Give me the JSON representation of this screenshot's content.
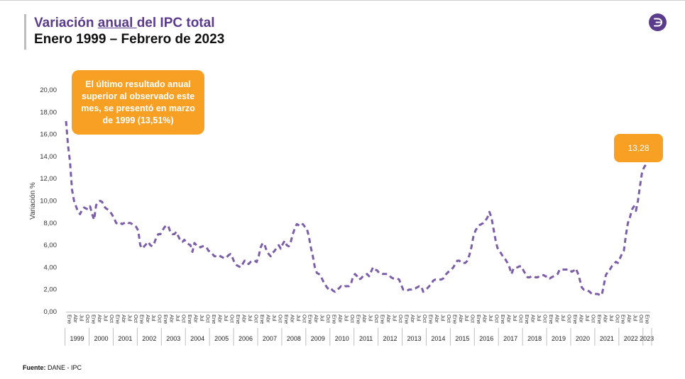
{
  "header": {
    "title_prefix": "Variación ",
    "title_underlined": "anual ",
    "title_suffix": "del IPC total",
    "subtitle": "Enero 1999 – Febrero de 2023"
  },
  "callout": {
    "text": "El último resultado anual superior al observado este mes, se presentó en marzo de 1999 (13,51%)"
  },
  "last_value_badge": {
    "text": "13,28"
  },
  "source": {
    "label": "Fuente:",
    "text": " DANE - IPC"
  },
  "colors": {
    "accent": "#5b3c8c",
    "callout": "#f7a023",
    "line": "#7b5ea7"
  },
  "logo": {
    "icon": "dane-logo-icon"
  },
  "chart_data": {
    "type": "line",
    "ylabel": "Variación %",
    "ylim": [
      0,
      20
    ],
    "ytick_labels": [
      "0,00",
      "2,00",
      "4,00",
      "6,00",
      "8,00",
      "10,00",
      "12,00",
      "14,00",
      "16,00",
      "18,00",
      "20,00"
    ],
    "month_labels": [
      "Ene",
      "Abr",
      "Jul",
      "Oct"
    ],
    "last_year_month_labels": [
      "Ene"
    ],
    "years": [
      "1999",
      "2000",
      "2001",
      "2002",
      "2003",
      "2004",
      "2005",
      "2006",
      "2007",
      "2008",
      "2009",
      "2010",
      "2011",
      "2012",
      "2013",
      "2014",
      "2015",
      "2016",
      "2017",
      "2018",
      "2019",
      "2020",
      "2021",
      "2022",
      "2023"
    ],
    "line_style": "dashed",
    "grid": false,
    "series": [
      {
        "values": [
          17.2,
          15.0,
          13.51,
          11.0,
          10.0,
          9.5,
          9.0,
          8.8,
          9.2,
          9.4,
          9.3,
          9.23,
          9.5,
          8.8,
          8.3,
          9.6,
          9.9,
          10.0,
          9.9,
          9.5,
          9.3,
          9.2,
          9.0,
          8.75,
          8.4,
          8.0,
          7.9,
          8.0,
          7.9,
          8.0,
          8.1,
          8.0,
          8.0,
          7.9,
          7.8,
          7.65,
          7.3,
          6.0,
          5.7,
          5.9,
          6.1,
          6.3,
          6.0,
          5.9,
          6.2,
          6.7,
          7.0,
          6.99,
          7.3,
          7.6,
          7.8,
          7.7,
          7.2,
          7.0,
          7.0,
          7.2,
          6.8,
          6.4,
          6.3,
          6.49,
          6.2,
          6.1,
          6.0,
          5.4,
          6.2,
          6.0,
          6.0,
          5.8,
          5.9,
          5.9,
          5.8,
          5.5,
          5.4,
          5.2,
          5.0,
          5.0,
          5.1,
          5.0,
          4.9,
          4.8,
          4.9,
          5.1,
          5.2,
          4.85,
          4.4,
          4.2,
          4.1,
          4.0,
          4.3,
          4.6,
          4.4,
          4.3,
          4.5,
          4.6,
          4.6,
          4.48,
          5.0,
          5.8,
          6.2,
          6.0,
          5.5,
          5.2,
          5.0,
          5.3,
          5.5,
          5.8,
          6.0,
          5.69,
          6.1,
          6.4,
          6.0,
          5.9,
          6.3,
          7.0,
          7.5,
          7.9,
          7.8,
          7.7,
          7.9,
          7.67,
          7.5,
          6.8,
          5.8,
          5.0,
          4.0,
          3.5,
          3.4,
          3.2,
          2.8,
          2.5,
          2.2,
          2.0,
          2.1,
          1.9,
          1.8,
          2.0,
          2.1,
          2.3,
          2.2,
          2.3,
          2.3,
          2.3,
          2.5,
          3.17,
          3.4,
          3.2,
          2.9,
          3.0,
          3.2,
          3.3,
          3.4,
          3.2,
          3.6,
          4.0,
          3.8,
          3.73,
          3.5,
          3.5,
          3.4,
          3.4,
          3.4,
          3.3,
          3.1,
          3.0,
          3.0,
          3.0,
          2.9,
          2.44,
          2.0,
          2.0,
          1.9,
          2.0,
          2.0,
          2.1,
          2.1,
          2.2,
          2.3,
          2.3,
          1.8,
          1.94,
          2.1,
          2.3,
          2.5,
          2.8,
          2.9,
          2.9,
          2.9,
          2.9,
          3.0,
          3.3,
          3.5,
          3.66,
          3.8,
          4.0,
          4.3,
          4.6,
          4.6,
          4.4,
          4.4,
          4.4,
          4.6,
          5.1,
          5.8,
          6.77,
          7.3,
          7.6,
          7.8,
          7.9,
          8.0,
          8.2,
          8.5,
          9.0,
          8.5,
          7.5,
          6.5,
          5.75,
          5.5,
          5.2,
          4.9,
          4.7,
          4.4,
          4.0,
          3.4,
          3.9,
          4.0,
          4.0,
          4.1,
          4.09,
          3.7,
          3.4,
          3.1,
          3.1,
          3.2,
          3.2,
          3.1,
          3.1,
          3.2,
          3.3,
          3.3,
          3.18,
          3.2,
          3.0,
          3.1,
          3.2,
          3.3,
          3.4,
          3.8,
          3.8,
          3.8,
          3.8,
          3.8,
          3.8,
          3.6,
          3.7,
          3.9,
          3.5,
          2.9,
          2.2,
          2.0,
          2.0,
          1.9,
          1.8,
          1.6,
          1.61,
          1.6,
          1.6,
          1.5,
          1.5,
          2.4,
          3.3,
          3.6,
          3.8,
          4.1,
          4.3,
          4.5,
          4.4,
          4.8,
          5.2,
          5.5,
          6.9,
          8.0,
          8.5,
          9.2,
          9.5,
          9.1,
          10.0,
          11.3,
          12.5,
          13.0,
          13.28
        ]
      }
    ]
  }
}
